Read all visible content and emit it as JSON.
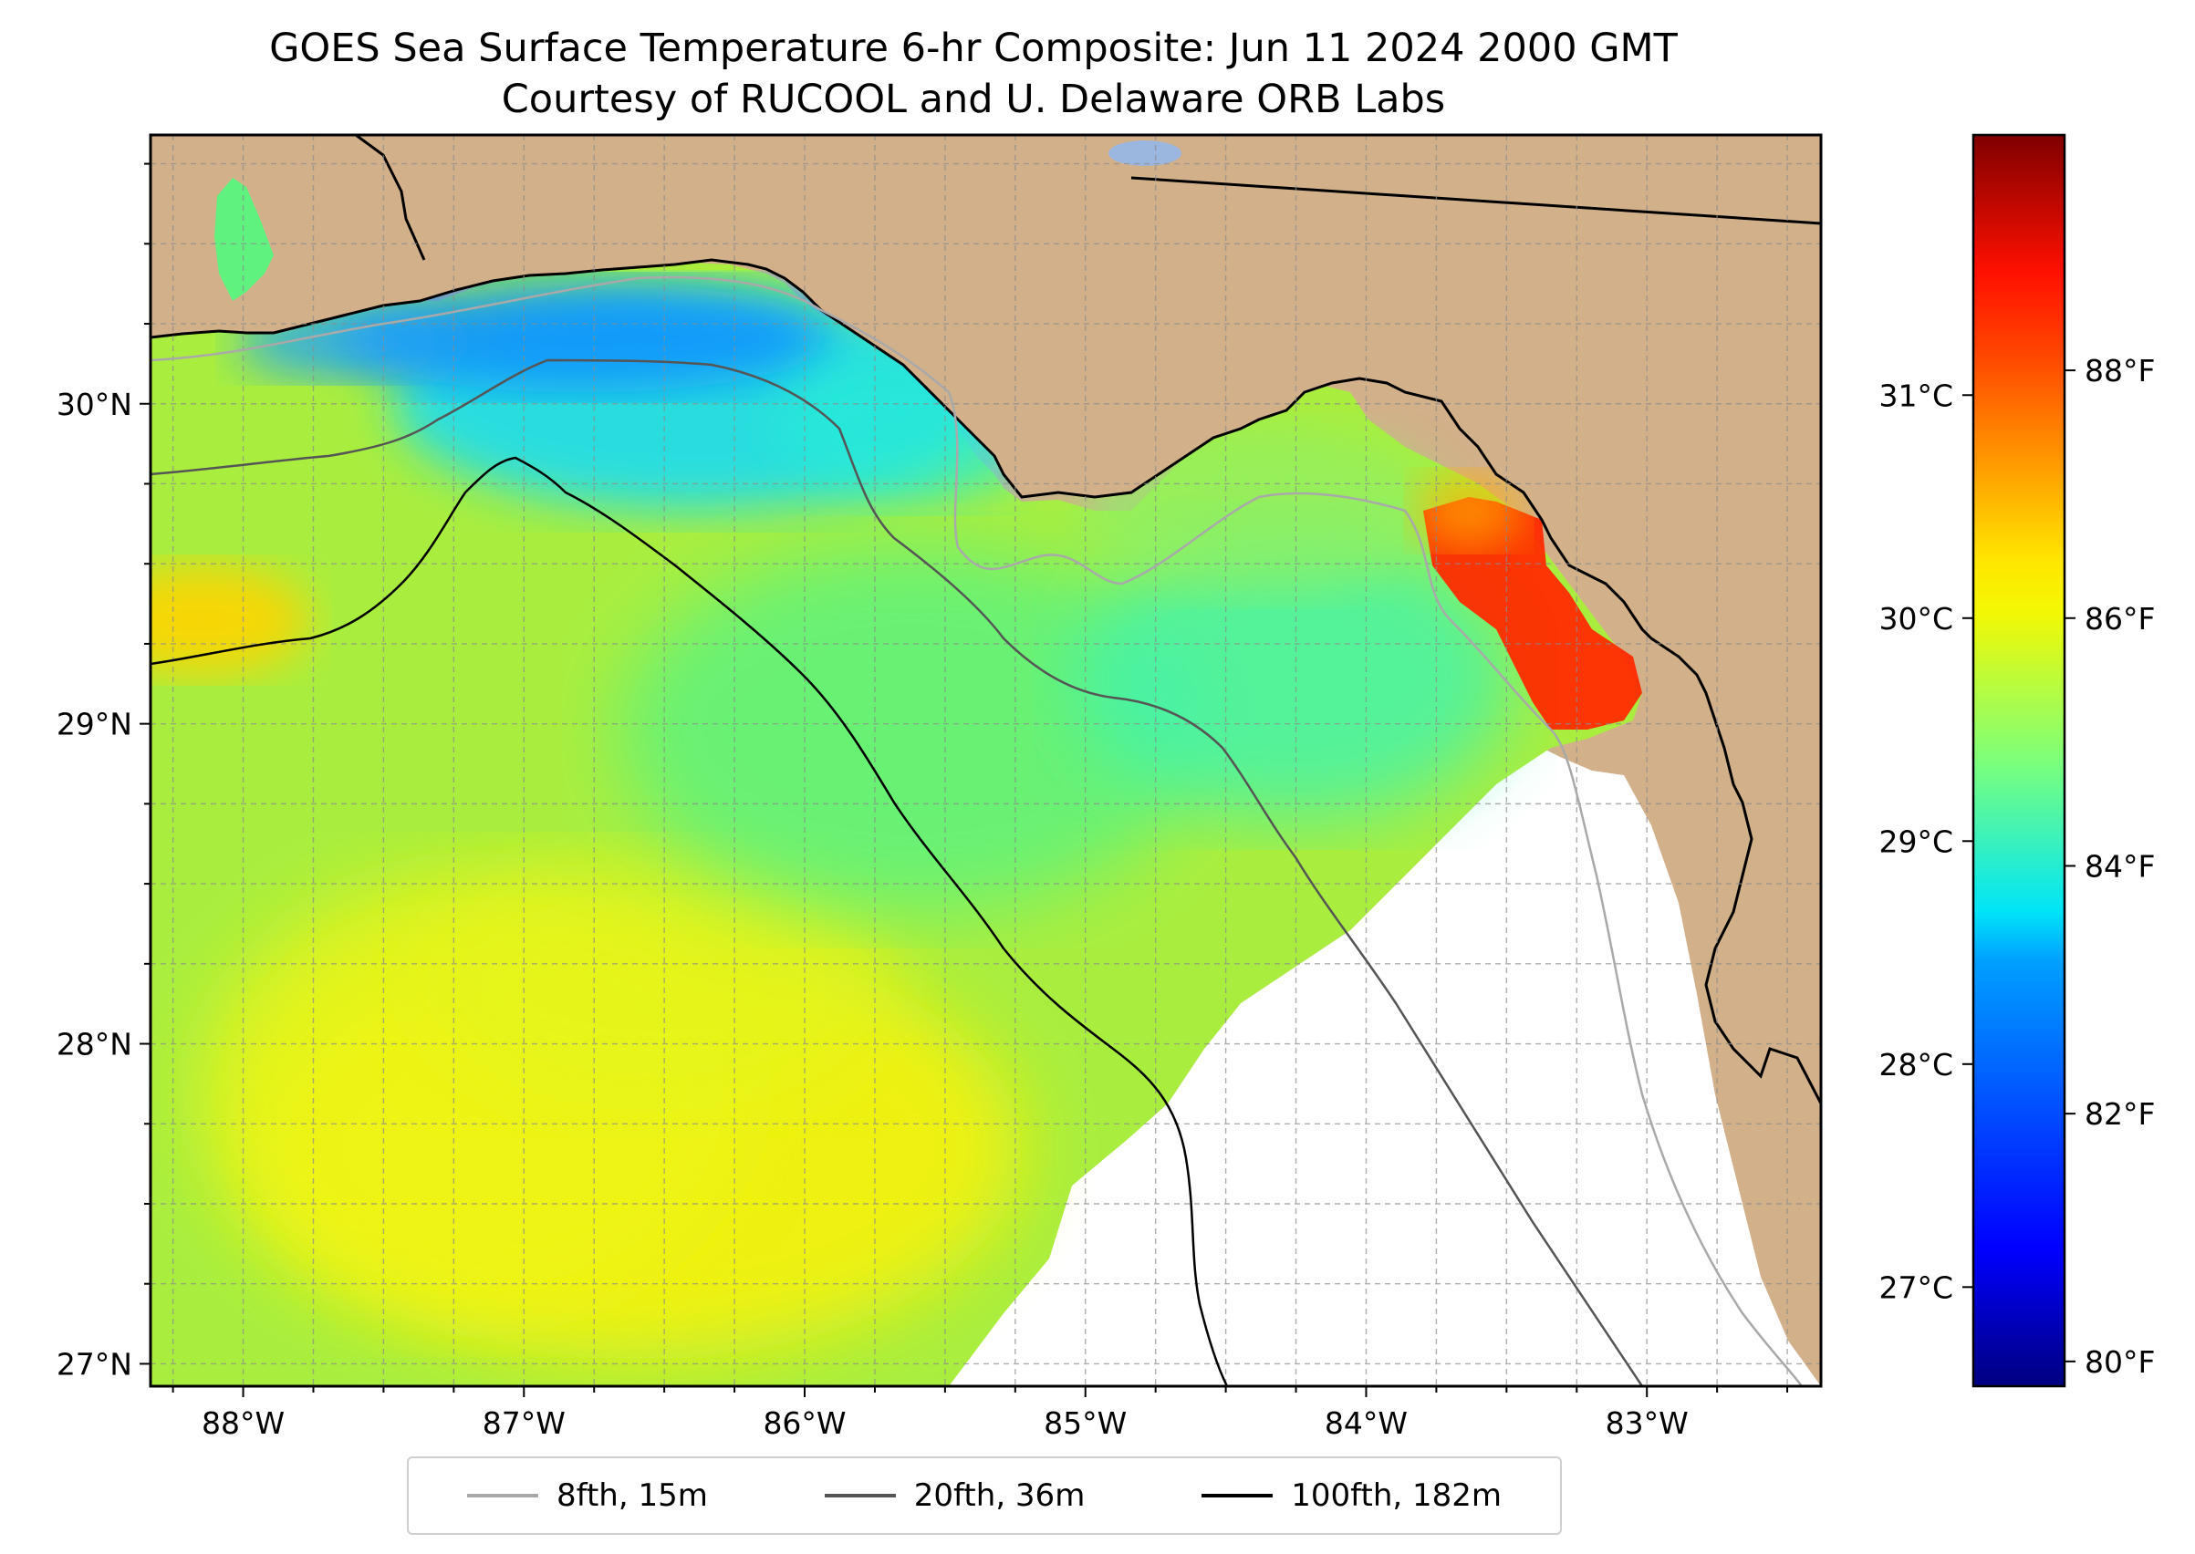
{
  "title": {
    "line1": "GOES Sea Surface Temperature 6-hr Composite: Jun 11 2024 2000 GMT",
    "line2": "Courtesy of RUCOOL and U. Delaware ORB Labs"
  },
  "map": {
    "lon_range": [
      -88.33,
      -82.38
    ],
    "lat_range": [
      26.93,
      30.84
    ],
    "lon_ticks": [
      {
        "value": -88,
        "label": "88°W"
      },
      {
        "value": -87,
        "label": "87°W"
      },
      {
        "value": -86,
        "label": "86°W"
      },
      {
        "value": -85,
        "label": "85°W"
      },
      {
        "value": -84,
        "label": "84°W"
      },
      {
        "value": -83,
        "label": "83°W"
      }
    ],
    "lat_ticks": [
      {
        "value": 27,
        "label": "27°N"
      },
      {
        "value": 28,
        "label": "28°N"
      },
      {
        "value": 29,
        "label": "29°N"
      },
      {
        "value": 30,
        "label": "30°N"
      }
    ],
    "gridlines": true,
    "land_color": "#d2b08a",
    "no_data_color": "#ffffff"
  },
  "colorbar": {
    "colormap": "jet",
    "range_f": [
      79.8,
      89.9
    ],
    "f_ticks": [
      {
        "value": 80,
        "label": "80°F"
      },
      {
        "value": 82,
        "label": "82°F"
      },
      {
        "value": 84,
        "label": "84°F"
      },
      {
        "value": 86,
        "label": "86°F"
      },
      {
        "value": 88,
        "label": "88°F"
      }
    ],
    "c_ticks": [
      {
        "value": 27,
        "label": "27°C"
      },
      {
        "value": 28,
        "label": "28°C"
      },
      {
        "value": 29,
        "label": "29°C"
      },
      {
        "value": 30,
        "label": "30°C"
      },
      {
        "value": 31,
        "label": "31°C"
      }
    ]
  },
  "legend": {
    "items": [
      {
        "label": "8fth, 15m",
        "color": "#a9a9a9"
      },
      {
        "label": "20fth, 36m",
        "color": "#555555"
      },
      {
        "label": "100fth, 182m",
        "color": "#000000"
      }
    ]
  }
}
